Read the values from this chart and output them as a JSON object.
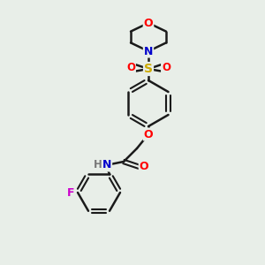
{
  "background_color": "#e8eee8",
  "bond_color": "#1a1a1a",
  "atom_colors": {
    "O": "#ff0000",
    "N": "#0000cc",
    "S": "#ccaa00",
    "F": "#cc00cc",
    "H": "#777777",
    "C": "#1a1a1a"
  },
  "figsize": [
    3.0,
    3.0
  ],
  "dpi": 100
}
